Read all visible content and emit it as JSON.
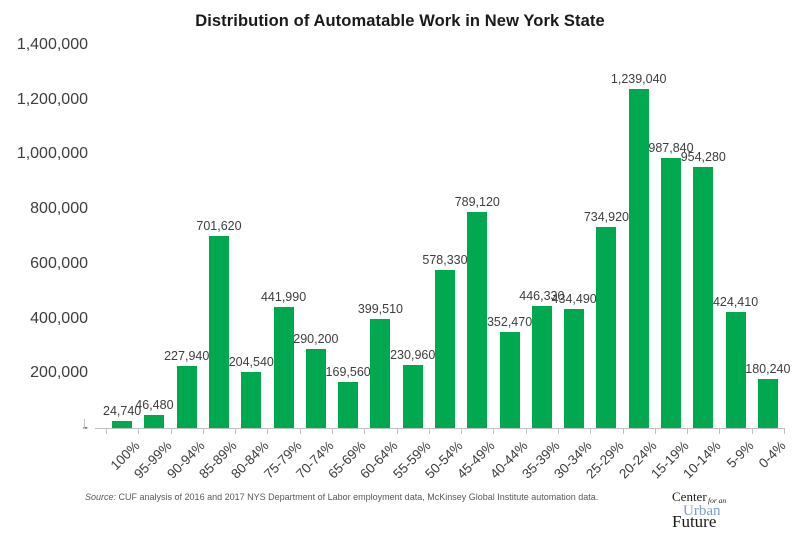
{
  "chart_data": {
    "type": "bar",
    "title": "Distribution of Automatable Work in New York State",
    "categories": [
      "100%",
      "95-99%",
      "90-94%",
      "85-89%",
      "80-84%",
      "75-79%",
      "70-74%",
      "65-69%",
      "60-64%",
      "55-59%",
      "50-54%",
      "45-49%",
      "40-44%",
      "35-39%",
      "30-34%",
      "25-29%",
      "20-24%",
      "15-19%",
      "10-14%",
      "5-9%",
      "0-4%"
    ],
    "values": [
      24740,
      46480,
      227940,
      701620,
      204540,
      441990,
      290200,
      169560,
      399510,
      230960,
      578330,
      789120,
      352470,
      446330,
      434490,
      734920,
      1239040,
      987840,
      954280,
      424410,
      180240
    ],
    "value_labels": [
      "24,740",
      "46,480",
      "227,940",
      "701,620",
      "204,540",
      "441,990",
      "290,200",
      "169,560",
      "399,510",
      "230,960",
      "578,330",
      "789,120",
      "352,470",
      "446,330",
      "434,490",
      "734,920",
      "1,239,040",
      "987,840",
      "954,280",
      "424,410",
      "180,240"
    ],
    "y_ticks": [
      "1,400,000",
      "1,200,000",
      "1,000,000",
      "800,000",
      "600,000",
      "400,000",
      "200,000",
      "-"
    ],
    "ylim": [
      0,
      1400000
    ],
    "xlabel": "",
    "ylabel": "",
    "grid": false,
    "legend": false,
    "bar_color": "#00a94f",
    "axis_text_color": "#3d3d3d",
    "axis_line_color": "#bfbfbf"
  },
  "footer": {
    "source_prefix": "Source:",
    "source_text": " CUF analysis of 2016 and 2017 NYS Department of Labor employment data, McKinsey Global Institute automation data."
  },
  "logo": {
    "center": "Center",
    "for_an": "for an",
    "urban": "Urban",
    "future": "Future",
    "urban_color": "#7ba0ca"
  }
}
